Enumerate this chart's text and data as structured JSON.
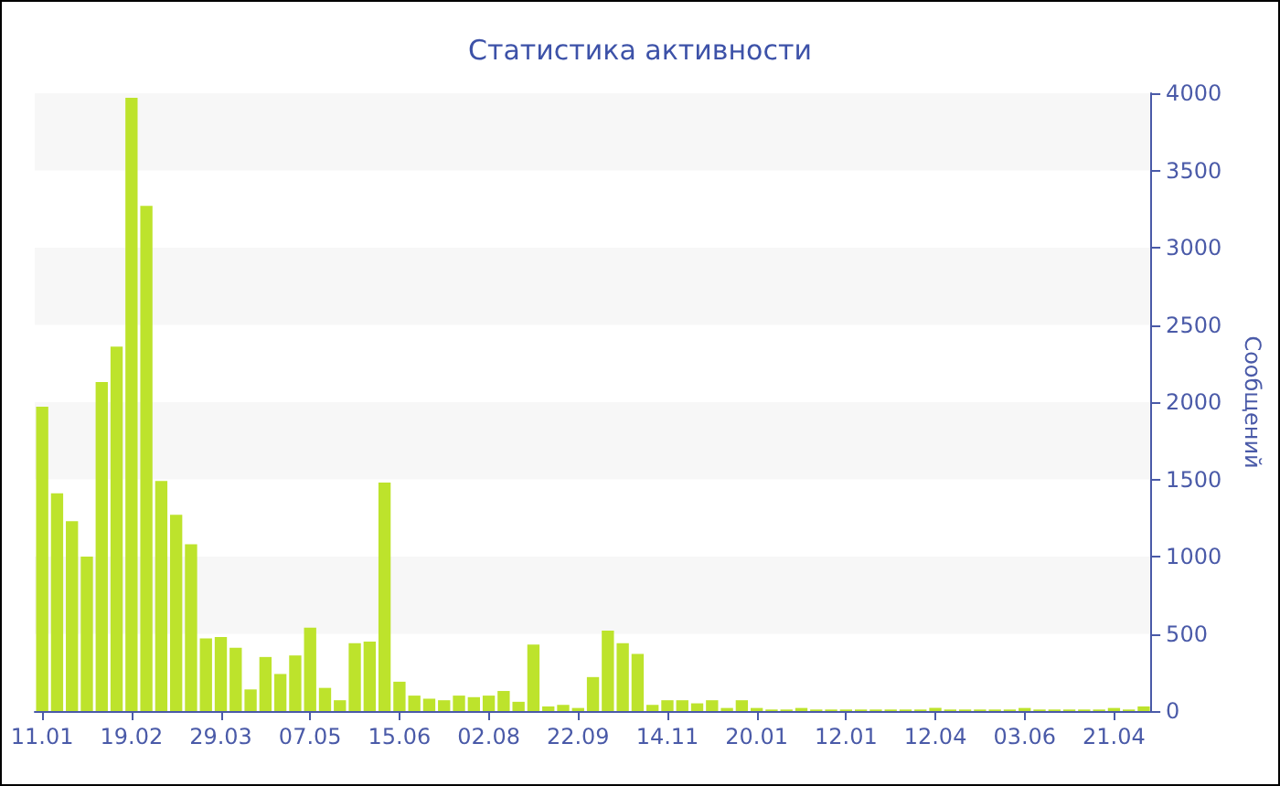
{
  "chart_data": {
    "type": "bar",
    "title": "Статистика активности",
    "ylabel": "Сообщений",
    "categories": [
      "11.01",
      null,
      null,
      null,
      null,
      null,
      "19.02",
      null,
      null,
      null,
      null,
      null,
      "29.03",
      null,
      null,
      null,
      null,
      null,
      "07.05",
      null,
      null,
      null,
      null,
      null,
      "15.06",
      null,
      null,
      null,
      null,
      null,
      "02.08",
      null,
      null,
      null,
      null,
      null,
      "22.09",
      null,
      null,
      null,
      null,
      null,
      "14.11",
      null,
      null,
      null,
      null,
      null,
      "20.01",
      null,
      null,
      null,
      null,
      null,
      "12.01",
      null,
      null,
      null,
      null,
      null,
      "12.04",
      null,
      null,
      null,
      null,
      null,
      "03.06",
      null,
      null,
      null,
      null,
      null,
      "21.04",
      null,
      null
    ],
    "values": [
      1970,
      1410,
      1230,
      1000,
      2130,
      2360,
      3970,
      3270,
      1490,
      1270,
      1080,
      470,
      480,
      410,
      140,
      350,
      240,
      360,
      540,
      150,
      70,
      440,
      450,
      1480,
      190,
      100,
      80,
      70,
      100,
      90,
      100,
      130,
      60,
      430,
      30,
      40,
      20,
      220,
      520,
      440,
      370,
      40,
      70,
      70,
      50,
      70,
      20,
      70,
      20,
      10,
      10,
      20,
      10,
      10,
      10,
      10,
      10,
      10,
      10,
      10,
      20,
      10,
      10,
      10,
      10,
      10,
      20,
      10,
      10,
      10,
      10,
      10,
      20,
      10,
      30
    ],
    "color": "#bde32c",
    "ylim": [
      0,
      4000
    ],
    "yticks": [
      0,
      500,
      1000,
      1500,
      2000,
      2500,
      3000,
      3500,
      4000
    ]
  }
}
